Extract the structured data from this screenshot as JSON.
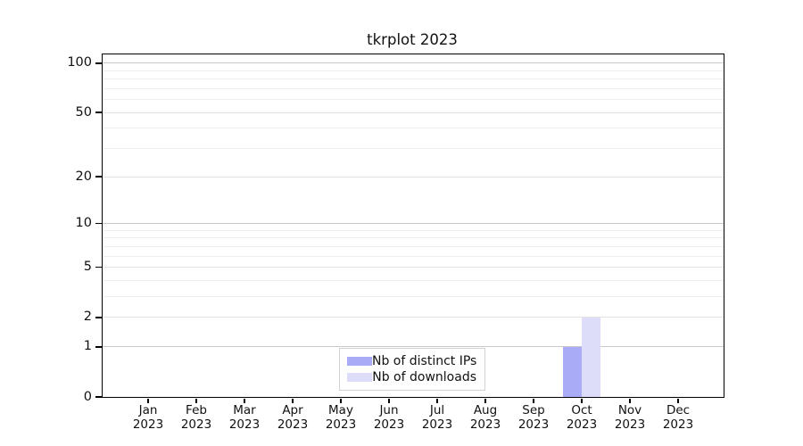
{
  "chart_data": {
    "type": "bar",
    "title": "tkrplot 2023",
    "categories": [
      "Jan",
      "Feb",
      "Mar",
      "Apr",
      "May",
      "Jun",
      "Jul",
      "Aug",
      "Sep",
      "Oct",
      "Nov",
      "Dec"
    ],
    "x_tick_second_line": "2023",
    "series": [
      {
        "name": "Nb of distinct IPs",
        "color": "#aaabf6",
        "values": [
          0,
          0,
          0,
          0,
          0,
          0,
          0,
          0,
          0,
          1,
          0,
          0
        ]
      },
      {
        "name": "Nb of downloads",
        "color": "#dddcf9",
        "values": [
          0,
          0,
          0,
          0,
          0,
          0,
          0,
          0,
          0,
          2,
          0,
          0
        ]
      }
    ],
    "yscale": "log1p",
    "ylim": [
      0,
      113
    ],
    "ytick_values": [
      0,
      1,
      2,
      5,
      10,
      20,
      50,
      100
    ],
    "ytick_labels": [
      "0",
      "1",
      "2",
      "5",
      "10",
      "20",
      "50",
      "100"
    ],
    "grid_major_values": [
      1,
      10,
      100
    ],
    "grid_mid_values": [
      2,
      5,
      20,
      50
    ],
    "grid_minor_values": [
      3,
      4,
      6,
      7,
      8,
      9,
      30,
      40,
      60,
      70,
      80,
      90
    ],
    "legend_position": "inside-bottom-center",
    "colors": {
      "axis": "#000000",
      "grid_major": "#c9c9c9",
      "grid_mid": "#e2e2e2",
      "grid_minor": "#efefef",
      "legend_border": "#d2d2d2",
      "background": "#ffffff",
      "text": "#111111"
    }
  }
}
